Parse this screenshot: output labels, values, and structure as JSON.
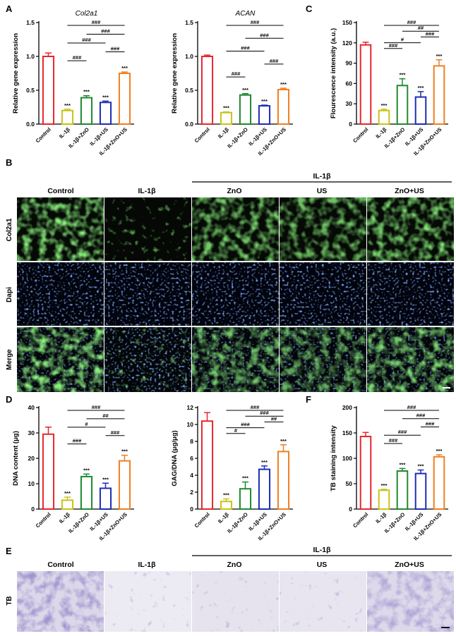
{
  "figure": {
    "panel_labels": [
      "A",
      "B",
      "C",
      "D",
      "E",
      "F"
    ],
    "micro_B": {
      "group_header": "IL-1β",
      "columns": [
        "Control",
        "IL-1β",
        "ZnO",
        "US",
        "ZnO+US"
      ],
      "rows": [
        "Col2a1",
        "Dapi",
        "Merge"
      ]
    },
    "micro_E": {
      "group_header": "IL-1β",
      "columns": [
        "Control",
        "IL-1β",
        "ZnO",
        "US",
        "ZnO+US"
      ],
      "rows": [
        "TB"
      ]
    },
    "colors": {
      "Control": "#e8262b",
      "IL-1β": "#c9c21a",
      "IL-1β+ZnO": "#1d8a2e",
      "IL-1β+US": "#1c2db5",
      "IL-1β+ZnO+US": "#f07f22",
      "green_stain": "#4ecf3c",
      "dapi_stain": "#3b63ff",
      "tb_stain": "#6a56a8"
    }
  },
  "chart_data": [
    {
      "panel": "A",
      "type": "bar",
      "title": "Col2a1",
      "xlabel": "",
      "ylabel": "Relative gene expression",
      "categories": [
        "Control",
        "IL-1β",
        "IL-1β+ZnO",
        "IL-1β+US",
        "IL-1β+ZnO+US"
      ],
      "values": [
        1.0,
        0.2,
        0.39,
        0.32,
        0.75
      ],
      "errors": [
        0.05,
        0.02,
        0.03,
        0.02,
        0.02
      ],
      "ylim": [
        0,
        1.5
      ],
      "yticks": [
        "0.0",
        "0.5",
        "1.0",
        "1.5"
      ],
      "stars": [
        "",
        "***",
        "***",
        "***",
        "***"
      ],
      "brackets": [
        {
          "from": 1,
          "to": 4,
          "label": "###"
        },
        {
          "from": 2,
          "to": 4,
          "label": "###"
        },
        {
          "from": 1,
          "to": 3,
          "label": "###"
        },
        {
          "from": 3,
          "to": 4,
          "label": "###"
        },
        {
          "from": 1,
          "to": 2,
          "label": "###"
        }
      ]
    },
    {
      "panel": "A2",
      "type": "bar",
      "title": "ACAN",
      "xlabel": "",
      "ylabel": "Relative gene expression",
      "categories": [
        "Control",
        "IL-1β",
        "IL-1β+ZnO",
        "IL-1β+US",
        "IL-1β+ZnO+US"
      ],
      "values": [
        1.0,
        0.17,
        0.43,
        0.27,
        0.51
      ],
      "errors": [
        0.02,
        0.01,
        0.02,
        0.01,
        0.02
      ],
      "ylim": [
        0,
        1.5
      ],
      "yticks": [
        "0.0",
        "0.5",
        "1.0",
        "1.5"
      ],
      "stars": [
        "",
        "***",
        "***",
        "***",
        "***"
      ],
      "brackets": [
        {
          "from": 1,
          "to": 4,
          "label": "###"
        },
        {
          "from": 2,
          "to": 4,
          "label": "###"
        },
        {
          "from": 1,
          "to": 3,
          "label": "###"
        },
        {
          "from": 3,
          "to": 4,
          "label": "###"
        },
        {
          "from": 1,
          "to": 2,
          "label": "###"
        }
      ]
    },
    {
      "panel": "C",
      "type": "bar",
      "title": "",
      "xlabel": "",
      "ylabel": "Flourescence intensity (a.u.)",
      "categories": [
        "Control",
        "IL-1β",
        "IL-1β+ZnO",
        "IL-1β+US",
        "IL-1β+ZnO+US"
      ],
      "values": [
        117,
        20,
        57,
        40,
        86
      ],
      "errors": [
        4,
        2,
        10,
        8,
        9
      ],
      "ylim": [
        0,
        150
      ],
      "yticks": [
        "0",
        "30",
        "60",
        "90",
        "120",
        "150"
      ],
      "stars": [
        "",
        "***",
        "***",
        "***",
        "***"
      ],
      "brackets": [
        {
          "from": 1,
          "to": 4,
          "label": "###"
        },
        {
          "from": 2,
          "to": 4,
          "label": "##"
        },
        {
          "from": 3,
          "to": 4,
          "label": "###"
        },
        {
          "from": 1,
          "to": 3,
          "label": "#"
        },
        {
          "from": 1,
          "to": 2,
          "label": "###"
        }
      ]
    },
    {
      "panel": "D",
      "type": "bar",
      "title": "",
      "xlabel": "",
      "ylabel": "DNA content (μg)",
      "categories": [
        "Control",
        "IL-1β",
        "IL-1β+ZnO",
        "IL-1β+US",
        "IL-1β+ZnO+US"
      ],
      "values": [
        29.5,
        3.5,
        12.8,
        8.2,
        19
      ],
      "errors": [
        2.8,
        1.2,
        1.0,
        2.0,
        2.2
      ],
      "ylim": [
        0,
        40
      ],
      "yticks": [
        "0",
        "10",
        "20",
        "30",
        "40"
      ],
      "stars": [
        "",
        "***",
        "***",
        "***",
        "***"
      ],
      "brackets": [
        {
          "from": 1,
          "to": 4,
          "label": "###"
        },
        {
          "from": 2,
          "to": 4,
          "label": "##"
        },
        {
          "from": 1,
          "to": 3,
          "label": "#"
        },
        {
          "from": 3,
          "to": 4,
          "label": "###"
        },
        {
          "from": 1,
          "to": 2,
          "label": "###"
        }
      ]
    },
    {
      "panel": "D2",
      "type": "bar",
      "title": "",
      "xlabel": "",
      "ylabel": "GAG/DNA (μg/μg)",
      "categories": [
        "Control",
        "IL-1β",
        "IL-1β+ZnO",
        "IL-1β+US",
        "IL-1β+ZnO+US"
      ],
      "values": [
        10.4,
        0.9,
        2.4,
        4.7,
        6.8
      ],
      "errors": [
        1.0,
        0.3,
        0.8,
        0.4,
        0.8
      ],
      "ylim": [
        0,
        12
      ],
      "yticks": [
        "0",
        "2",
        "4",
        "6",
        "8",
        "10",
        "12"
      ],
      "stars": [
        "",
        "***",
        "***",
        "***",
        "***"
      ],
      "brackets": [
        {
          "from": 1,
          "to": 4,
          "label": "###"
        },
        {
          "from": 2,
          "to": 4,
          "label": "###"
        },
        {
          "from": 3,
          "to": 4,
          "label": "##"
        },
        {
          "from": 1,
          "to": 3,
          "label": "###"
        },
        {
          "from": 1,
          "to": 2,
          "label": "#"
        }
      ]
    },
    {
      "panel": "F",
      "type": "bar",
      "title": "",
      "xlabel": "",
      "ylabel": "TB staining intensity",
      "categories": [
        "Control",
        "IL-1β",
        "IL-1β+ZnO",
        "IL-1β+US",
        "IL-1β+ZnO+US"
      ],
      "values": [
        143,
        37,
        75,
        70,
        103
      ],
      "errors": [
        8,
        2,
        5,
        7,
        4
      ],
      "ylim": [
        0,
        200
      ],
      "yticks": [
        "0",
        "50",
        "100",
        "150",
        "200"
      ],
      "stars": [
        "",
        "***",
        "***",
        "***",
        "***"
      ],
      "brackets": [
        {
          "from": 1,
          "to": 4,
          "label": "###"
        },
        {
          "from": 2,
          "to": 4,
          "label": "###"
        },
        {
          "from": 3,
          "to": 4,
          "label": "###"
        },
        {
          "from": 1,
          "to": 3,
          "label": "###"
        },
        {
          "from": 1,
          "to": 2,
          "label": "###"
        }
      ]
    }
  ]
}
